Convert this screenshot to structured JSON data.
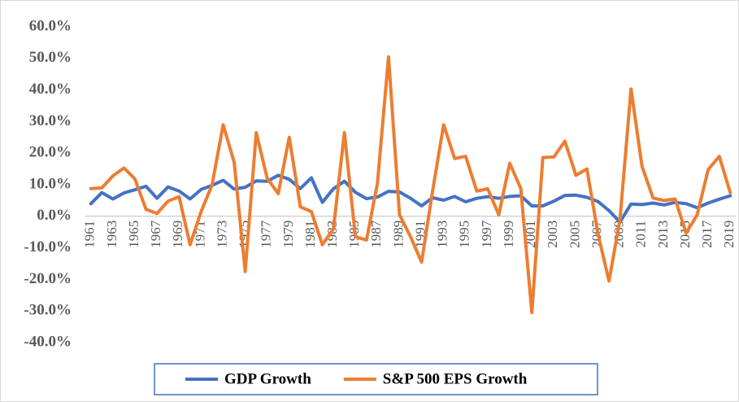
{
  "chart_data": {
    "type": "line",
    "categories": [
      "1961",
      null,
      "1963",
      null,
      "1965",
      null,
      "1967",
      null,
      "1969",
      null,
      "1971",
      null,
      "1973",
      null,
      "1975",
      null,
      "1977",
      null,
      "1979",
      null,
      "1981",
      null,
      "1983",
      null,
      "1985",
      null,
      "1987",
      null,
      "1989",
      null,
      "1991",
      null,
      "1993",
      null,
      "1995",
      null,
      "1997",
      null,
      "1999",
      null,
      "2001",
      null,
      "2003",
      null,
      "2005",
      null,
      "2007",
      null,
      "2009",
      null,
      "2011",
      null,
      "2013",
      null,
      "2015",
      null,
      "2017",
      null,
      "2019"
    ],
    "series": [
      {
        "name": "GDP Growth",
        "color": "#4472c4",
        "values": [
          4.0,
          7.5,
          5.5,
          7.4,
          8.4,
          9.5,
          5.7,
          9.3,
          8.0,
          5.5,
          8.5,
          9.8,
          11.4,
          8.6,
          9.2,
          11.2,
          11.1,
          13.0,
          11.7,
          8.8,
          12.2,
          4.4,
          8.7,
          11.1,
          7.6,
          5.6,
          6.1,
          7.9,
          7.7,
          5.7,
          3.3,
          5.9,
          5.1,
          6.3,
          4.6,
          5.7,
          6.2,
          5.7,
          6.3,
          6.5,
          3.3,
          3.3,
          4.8,
          6.6,
          6.7,
          6.0,
          4.7,
          1.8,
          -1.8,
          3.9,
          3.7,
          4.2,
          3.6,
          4.4,
          4.0,
          2.7,
          4.2,
          5.4,
          6.5
        ]
      },
      {
        "name": "S&P 500 EPS Growth",
        "color": "#ed7d31",
        "values": [
          8.8,
          9.0,
          12.8,
          15.3,
          11.8,
          2.2,
          0.9,
          4.8,
          6.2,
          -9.0,
          1.5,
          10.0,
          29.0,
          17.0,
          -17.5,
          26.5,
          12.0,
          7.2,
          25.0,
          3.0,
          1.5,
          -9.0,
          -4.0,
          26.5,
          -6.5,
          -7.5,
          10.5,
          50.5,
          0.5,
          -6.5,
          -14.5,
          8.0,
          29.0,
          18.3,
          19.0,
          8.0,
          8.7,
          0.5,
          16.8,
          8.8,
          -30.5,
          18.6,
          18.8,
          23.8,
          13.0,
          15.0,
          -5.5,
          -20.5,
          -1.0,
          40.3,
          15.8,
          5.8,
          5.0,
          5.5,
          -5.3,
          0.4,
          14.8,
          19.0,
          7.5
        ]
      }
    ],
    "ylim": [
      -40,
      60
    ],
    "yticks": [
      {
        "value": -40,
        "label": "-40.0%"
      },
      {
        "value": -30,
        "label": "-30.0%"
      },
      {
        "value": -20,
        "label": "-20.0%"
      },
      {
        "value": -10,
        "label": "-10.0%"
      },
      {
        "value": 0,
        "label": "0.0%"
      },
      {
        "value": 10,
        "label": "10.0%"
      },
      {
        "value": 20,
        "label": "20.0%"
      },
      {
        "value": 30,
        "label": "30.0%"
      },
      {
        "value": 40,
        "label": "40.0%"
      },
      {
        "value": 50,
        "label": "50.0%"
      },
      {
        "value": 60,
        "label": "60.0%"
      }
    ],
    "grid": false,
    "legend": "bottom"
  }
}
